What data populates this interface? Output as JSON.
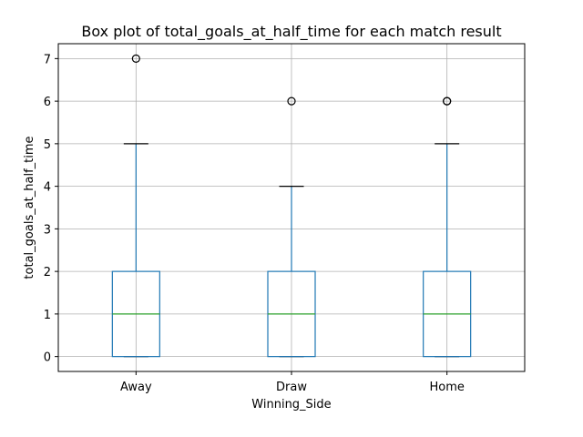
{
  "chart_data": {
    "type": "box",
    "title": "Box plot of total_goals_at_half_time for each match result",
    "xlabel": "Winning_Side",
    "ylabel": "total_goals_at_half_time",
    "ylim": [
      -0.35,
      7.35
    ],
    "yticks": [
      0,
      1,
      2,
      3,
      4,
      5,
      6,
      7
    ],
    "grid": true,
    "categories": [
      "Away",
      "Draw",
      "Home"
    ],
    "boxes": [
      {
        "category": "Away",
        "whisker_low": 0,
        "q1": 0,
        "median": 1,
        "q3": 2,
        "whisker_high": 5,
        "outliers": [
          7
        ]
      },
      {
        "category": "Draw",
        "whisker_low": 0,
        "q1": 0,
        "median": 1,
        "q3": 2,
        "whisker_high": 4,
        "outliers": [
          6
        ]
      },
      {
        "category": "Home",
        "whisker_low": 0,
        "q1": 0,
        "median": 1,
        "q3": 2,
        "whisker_high": 5,
        "outliers": [
          6,
          6
        ]
      }
    ],
    "colors": {
      "box": "#1f77b4",
      "median": "#2ca02c",
      "outlier": "#000000",
      "grid": "#b0b0b0"
    }
  }
}
